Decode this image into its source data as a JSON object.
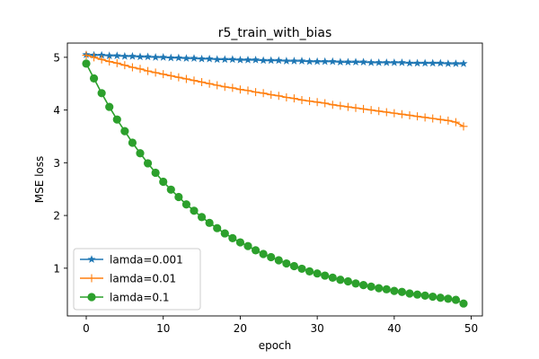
{
  "chart_data": {
    "type": "line",
    "title": "r5_train_with_bias",
    "xlabel": "epoch",
    "ylabel": "MSE loss",
    "xlim": [
      -2.45,
      51.45
    ],
    "ylim": [
      0.095,
      5.27
    ],
    "xticks": [
      0,
      10,
      20,
      30,
      40,
      50
    ],
    "yticks": [
      1,
      2,
      3,
      4,
      5
    ],
    "grid": false,
    "legend": "lower-left",
    "series": [
      {
        "name": "lamda=0.001",
        "color": "#1f77b4",
        "marker": "star",
        "values": [
          5.05,
          5.04,
          5.04,
          5.03,
          5.03,
          5.02,
          5.02,
          5.01,
          5.01,
          5.0,
          5.0,
          4.99,
          4.99,
          4.98,
          4.98,
          4.97,
          4.97,
          4.96,
          4.96,
          4.96,
          4.95,
          4.95,
          4.95,
          4.94,
          4.94,
          4.94,
          4.93,
          4.93,
          4.93,
          4.92,
          4.92,
          4.92,
          4.92,
          4.91,
          4.91,
          4.91,
          4.91,
          4.9,
          4.9,
          4.9,
          4.9,
          4.9,
          4.89,
          4.89,
          4.89,
          4.89,
          4.89,
          4.88,
          4.88,
          4.88
        ]
      },
      {
        "name": "lamda=0.01",
        "color": "#ff7f0e",
        "marker": "plus",
        "values": [
          5.04,
          5.0,
          4.96,
          4.92,
          4.89,
          4.85,
          4.81,
          4.78,
          4.74,
          4.71,
          4.68,
          4.65,
          4.62,
          4.59,
          4.56,
          4.53,
          4.5,
          4.47,
          4.44,
          4.42,
          4.39,
          4.37,
          4.34,
          4.32,
          4.29,
          4.27,
          4.24,
          4.22,
          4.19,
          4.17,
          4.15,
          4.13,
          4.1,
          4.08,
          4.06,
          4.04,
          4.02,
          4.0,
          3.98,
          3.96,
          3.94,
          3.92,
          3.9,
          3.88,
          3.86,
          3.84,
          3.82,
          3.8,
          3.77,
          3.69
        ]
      },
      {
        "name": "lamda=0.1",
        "color": "#2ca02c",
        "marker": "circle",
        "values": [
          4.88,
          4.6,
          4.32,
          4.06,
          3.82,
          3.6,
          3.38,
          3.18,
          2.99,
          2.81,
          2.64,
          2.49,
          2.35,
          2.21,
          2.09,
          1.97,
          1.86,
          1.76,
          1.66,
          1.57,
          1.49,
          1.42,
          1.34,
          1.27,
          1.21,
          1.15,
          1.09,
          1.04,
          0.99,
          0.94,
          0.9,
          0.86,
          0.82,
          0.78,
          0.75,
          0.71,
          0.68,
          0.65,
          0.62,
          0.6,
          0.57,
          0.55,
          0.52,
          0.5,
          0.48,
          0.46,
          0.44,
          0.42,
          0.4,
          0.33
        ]
      }
    ]
  }
}
